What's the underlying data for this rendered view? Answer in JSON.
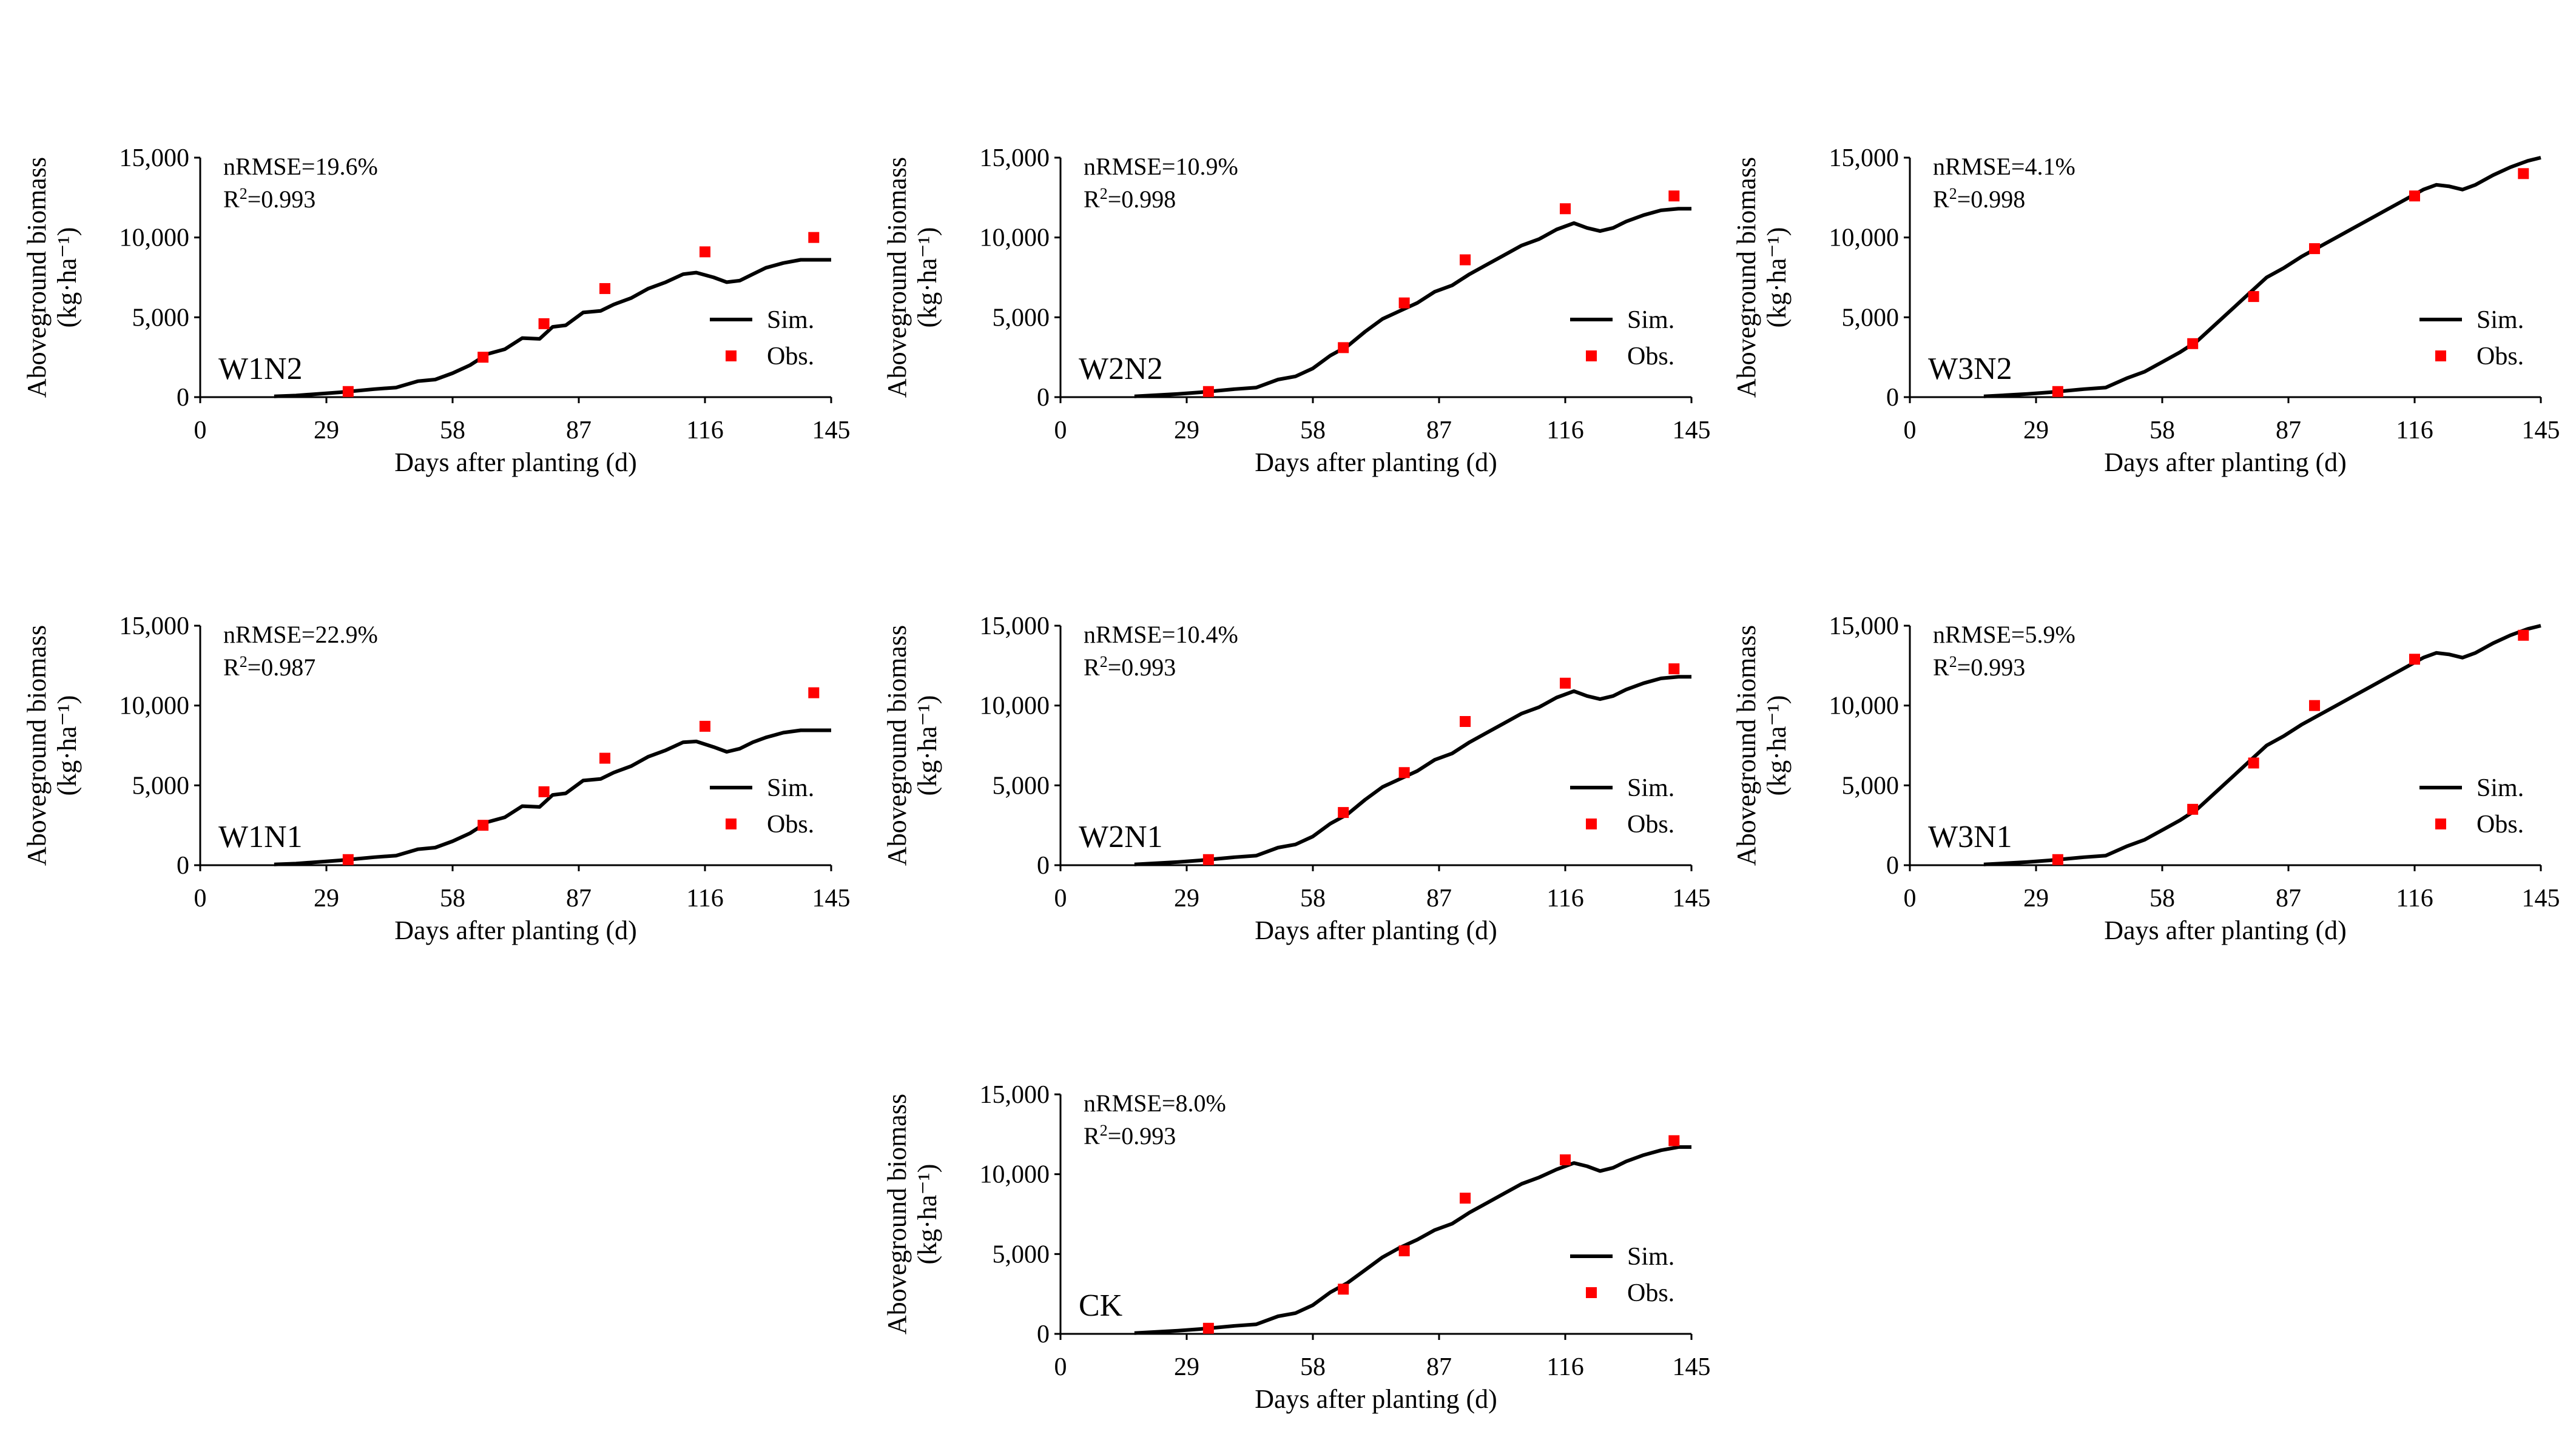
{
  "figure": {
    "shared_axes": {
      "xlabel": "Days after planting (d)",
      "ylabel_main": "Aboveground biomass",
      "ylabel_unit": "(kg·ha⁻¹)",
      "xticks": [
        0,
        29,
        58,
        87,
        116,
        145
      ],
      "xtick_labels": [
        "0",
        "29",
        "58",
        "87",
        "116",
        "145"
      ],
      "yticks": [
        0,
        5000,
        10000,
        15000
      ],
      "ytick_labels": [
        "0",
        "5,000",
        "10,000",
        "15,000"
      ],
      "xlim": [
        0,
        145
      ],
      "ylim": [
        0,
        15000
      ]
    },
    "legend": {
      "sim_label": "Sim.",
      "obs_label": "Obs."
    },
    "colors": {
      "sim_line": "#000000",
      "obs_marker": "#ff0000",
      "axis": "#000000"
    }
  },
  "chart_data": [
    {
      "type": "line",
      "title": "W1N2",
      "stats": {
        "nrmse": "nRMSE=19.6%",
        "r2_prefix": "R",
        "r2_sup": "2",
        "r2_value": "=0.993"
      },
      "xlabel": "Days after planting (d)",
      "ylabel": "Aboveground biomass (kg·ha⁻¹)",
      "xlim": [
        0,
        145
      ],
      "ylim": [
        0,
        15000
      ],
      "series": [
        {
          "name": "Sim.",
          "type": "line",
          "x": [
            17,
            22,
            27,
            32,
            36,
            40,
            45,
            50,
            54,
            58,
            62,
            66,
            70,
            74,
            78,
            81,
            84,
            88,
            92,
            95,
            99,
            103,
            107,
            111,
            114,
            118,
            121,
            124,
            127,
            130,
            134,
            138,
            142,
            145
          ],
          "values": [
            50,
            100,
            200,
            300,
            400,
            500,
            600,
            1000,
            1100,
            1500,
            2000,
            2700,
            3000,
            3700,
            3650,
            4400,
            4500,
            5300,
            5400,
            5800,
            6200,
            6800,
            7200,
            7700,
            7800,
            7500,
            7200,
            7300,
            7700,
            8100,
            8400,
            8600,
            8600,
            8600
          ]
        },
        {
          "name": "Obs.",
          "type": "scatter",
          "x": [
            34,
            65,
            79,
            93,
            116,
            141
          ],
          "values": [
            350,
            2500,
            4600,
            6800,
            9100,
            10000
          ]
        }
      ]
    },
    {
      "type": "line",
      "title": "W2N2",
      "stats": {
        "nrmse": "nRMSE=10.9%",
        "r2_prefix": "R",
        "r2_sup": "2",
        "r2_value": "=0.998"
      },
      "xlabel": "Days after planting (d)",
      "ylabel": "Aboveground biomass (kg·ha⁻¹)",
      "xlim": [
        0,
        145
      ],
      "ylim": [
        0,
        15000
      ],
      "series": [
        {
          "name": "Sim.",
          "type": "line",
          "x": [
            17,
            22,
            27,
            32,
            36,
            40,
            45,
            50,
            54,
            58,
            62,
            66,
            70,
            74,
            78,
            82,
            86,
            90,
            94,
            98,
            102,
            106,
            110,
            114,
            118,
            121,
            124,
            127,
            130,
            134,
            138,
            142,
            145
          ],
          "values": [
            50,
            120,
            200,
            300,
            400,
            500,
            600,
            1100,
            1300,
            1800,
            2600,
            3200,
            4100,
            4900,
            5400,
            5900,
            6600,
            7000,
            7700,
            8300,
            8900,
            9500,
            9900,
            10500,
            10900,
            10600,
            10400,
            10600,
            11000,
            11400,
            11700,
            11800,
            11800
          ]
        },
        {
          "name": "Obs.",
          "type": "scatter",
          "x": [
            34,
            65,
            79,
            93,
            116,
            141
          ],
          "values": [
            350,
            3100,
            5900,
            8600,
            11800,
            12600
          ]
        }
      ]
    },
    {
      "type": "line",
      "title": "W3N2",
      "stats": {
        "nrmse": "nRMSE=4.1%",
        "r2_prefix": "R",
        "r2_sup": "2",
        "r2_value": "=0.998"
      },
      "xlabel": "Days after planting (d)",
      "ylabel": "Aboveground biomass (kg·ha⁻¹)",
      "xlim": [
        0,
        145
      ],
      "ylim": [
        0,
        15000
      ],
      "series": [
        {
          "name": "Sim.",
          "type": "line",
          "x": [
            17,
            22,
            27,
            32,
            36,
            40,
            45,
            50,
            54,
            58,
            62,
            66,
            70,
            74,
            78,
            82,
            86,
            90,
            94,
            98,
            102,
            106,
            110,
            114,
            118,
            121,
            124,
            127,
            130,
            134,
            138,
            142,
            145
          ],
          "values": [
            50,
            120,
            200,
            300,
            400,
            500,
            600,
            1200,
            1600,
            2200,
            2800,
            3500,
            4500,
            5500,
            6500,
            7500,
            8100,
            8800,
            9400,
            10000,
            10600,
            11200,
            11800,
            12400,
            13000,
            13300,
            13200,
            13000,
            13300,
            13900,
            14400,
            14800,
            15000
          ]
        },
        {
          "name": "Obs.",
          "type": "scatter",
          "x": [
            34,
            65,
            79,
            93,
            116,
            141
          ],
          "values": [
            350,
            3350,
            6300,
            9300,
            12600,
            14000
          ]
        }
      ]
    },
    {
      "type": "line",
      "title": "W1N1",
      "stats": {
        "nrmse": "nRMSE=22.9%",
        "r2_prefix": "R",
        "r2_sup": "2",
        "r2_value": "=0.987"
      },
      "xlabel": "Days after planting (d)",
      "ylabel": "Aboveground biomass (kg·ha⁻¹)",
      "xlim": [
        0,
        145
      ],
      "ylim": [
        0,
        15000
      ],
      "series": [
        {
          "name": "Sim.",
          "type": "line",
          "x": [
            17,
            22,
            27,
            32,
            36,
            40,
            45,
            50,
            54,
            58,
            62,
            66,
            70,
            74,
            78,
            81,
            84,
            88,
            92,
            95,
            99,
            103,
            107,
            111,
            114,
            118,
            121,
            124,
            127,
            130,
            134,
            138,
            142,
            145
          ],
          "values": [
            50,
            100,
            200,
            300,
            400,
            500,
            600,
            1000,
            1100,
            1500,
            2000,
            2700,
            3000,
            3700,
            3650,
            4400,
            4500,
            5300,
            5400,
            5800,
            6200,
            6800,
            7200,
            7700,
            7750,
            7400,
            7100,
            7300,
            7700,
            8000,
            8300,
            8450,
            8450,
            8450
          ]
        },
        {
          "name": "Obs.",
          "type": "scatter",
          "x": [
            34,
            65,
            79,
            93,
            116,
            141
          ],
          "values": [
            350,
            2500,
            4600,
            6700,
            8700,
            10800
          ]
        }
      ]
    },
    {
      "type": "line",
      "title": "W2N1",
      "stats": {
        "nrmse": "nRMSE=10.4%",
        "r2_prefix": "R",
        "r2_sup": "2",
        "r2_value": "=0.993"
      },
      "xlabel": "Days after planting (d)",
      "ylabel": "Aboveground biomass (kg·ha⁻¹)",
      "xlim": [
        0,
        145
      ],
      "ylim": [
        0,
        15000
      ],
      "series": [
        {
          "name": "Sim.",
          "type": "line",
          "x": [
            17,
            22,
            27,
            32,
            36,
            40,
            45,
            50,
            54,
            58,
            62,
            66,
            70,
            74,
            78,
            82,
            86,
            90,
            94,
            98,
            102,
            106,
            110,
            114,
            118,
            121,
            124,
            127,
            130,
            134,
            138,
            142,
            145
          ],
          "values": [
            50,
            120,
            200,
            300,
            400,
            500,
            600,
            1100,
            1300,
            1800,
            2600,
            3200,
            4100,
            4900,
            5400,
            5900,
            6600,
            7000,
            7700,
            8300,
            8900,
            9500,
            9900,
            10500,
            10900,
            10600,
            10400,
            10600,
            11000,
            11400,
            11700,
            11800,
            11800
          ]
        },
        {
          "name": "Obs.",
          "type": "scatter",
          "x": [
            34,
            65,
            79,
            93,
            116,
            141
          ],
          "values": [
            350,
            3300,
            5800,
            9000,
            11400,
            12300
          ]
        }
      ]
    },
    {
      "type": "line",
      "title": "W3N1",
      "stats": {
        "nrmse": "nRMSE=5.9%",
        "r2_prefix": "R",
        "r2_sup": "2",
        "r2_value": "=0.993"
      },
      "xlabel": "Days after planting (d)",
      "ylabel": "Aboveground biomass (kg·ha⁻¹)",
      "xlim": [
        0,
        145
      ],
      "ylim": [
        0,
        15000
      ],
      "series": [
        {
          "name": "Sim.",
          "type": "line",
          "x": [
            17,
            22,
            27,
            32,
            36,
            40,
            45,
            50,
            54,
            58,
            62,
            66,
            70,
            74,
            78,
            82,
            86,
            90,
            94,
            98,
            102,
            106,
            110,
            114,
            118,
            121,
            124,
            127,
            130,
            134,
            138,
            142,
            145
          ],
          "values": [
            50,
            120,
            200,
            300,
            400,
            500,
            600,
            1200,
            1600,
            2200,
            2800,
            3500,
            4500,
            5500,
            6500,
            7500,
            8100,
            8800,
            9400,
            10000,
            10600,
            11200,
            11800,
            12400,
            13000,
            13300,
            13200,
            13000,
            13300,
            13900,
            14400,
            14800,
            15000
          ]
        },
        {
          "name": "Obs.",
          "type": "scatter",
          "x": [
            34,
            65,
            79,
            93,
            116,
            141
          ],
          "values": [
            350,
            3500,
            6400,
            10000,
            12900,
            14400
          ]
        }
      ]
    },
    {
      "type": "line",
      "title": "CK",
      "stats": {
        "nrmse": "nRMSE=8.0%",
        "r2_prefix": "R",
        "r2_sup": "2",
        "r2_value": "=0.993"
      },
      "xlabel": "Days after planting (d)",
      "ylabel": "Aboveground biomass (kg·ha⁻¹)",
      "xlim": [
        0,
        145
      ],
      "ylim": [
        0,
        15000
      ],
      "series": [
        {
          "name": "Sim.",
          "type": "line",
          "x": [
            17,
            22,
            27,
            32,
            36,
            40,
            45,
            50,
            54,
            58,
            62,
            66,
            70,
            74,
            78,
            82,
            86,
            90,
            94,
            98,
            102,
            106,
            110,
            114,
            118,
            121,
            124,
            127,
            130,
            134,
            138,
            142,
            145
          ],
          "values": [
            50,
            120,
            200,
            300,
            400,
            500,
            600,
            1100,
            1300,
            1800,
            2600,
            3200,
            4000,
            4800,
            5400,
            5900,
            6500,
            6900,
            7600,
            8200,
            8800,
            9400,
            9800,
            10300,
            10700,
            10500,
            10200,
            10400,
            10800,
            11200,
            11500,
            11700,
            11700
          ]
        },
        {
          "name": "Obs.",
          "type": "scatter",
          "x": [
            34,
            65,
            79,
            93,
            116,
            141
          ],
          "values": [
            350,
            2800,
            5200,
            8500,
            10900,
            12100
          ]
        }
      ]
    }
  ]
}
